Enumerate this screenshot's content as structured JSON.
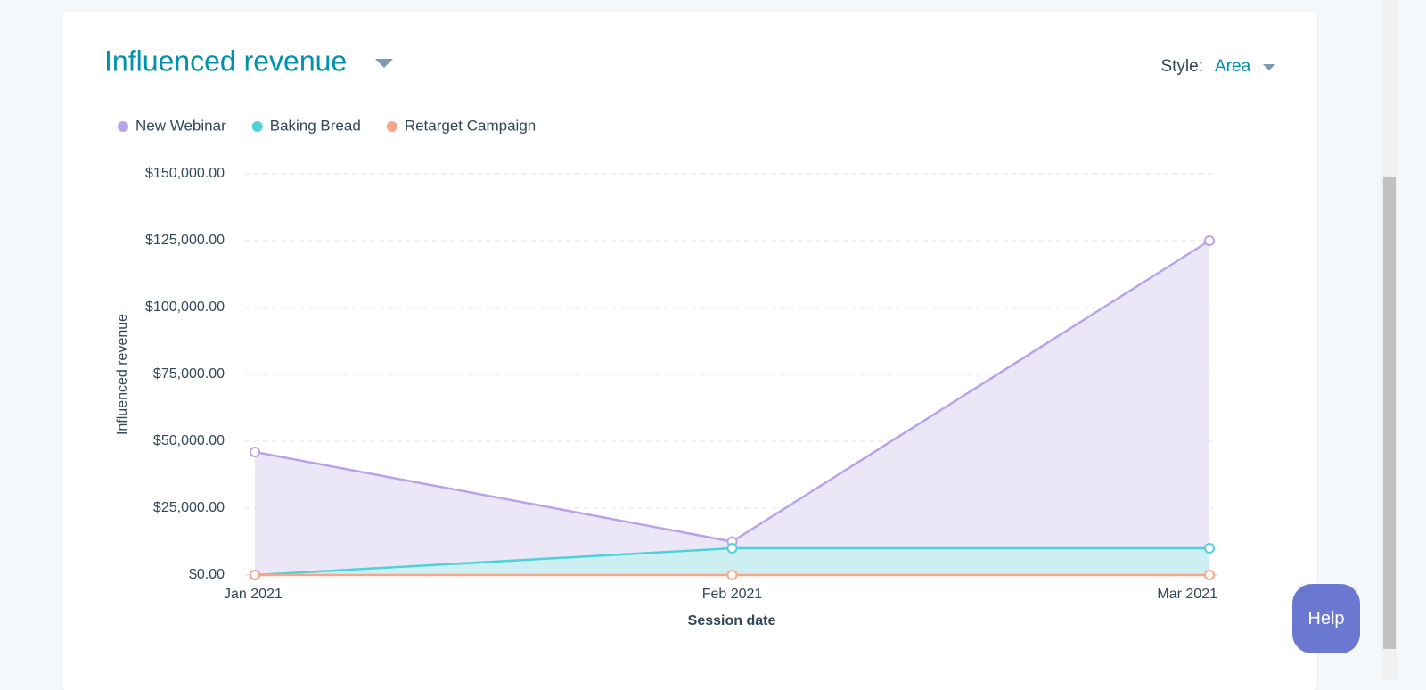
{
  "chart_data": {
    "type": "area",
    "title": "Influenced revenue",
    "y_label": "Influenced revenue",
    "x_label": "Session date",
    "categories": [
      "Jan 2021",
      "Feb 2021",
      "Mar 2021"
    ],
    "series": [
      {
        "name": "New Webinar",
        "color": "#b9a3e8",
        "fill": "#e9e3f6",
        "values": [
          46000,
          12500,
          125000
        ]
      },
      {
        "name": "Baking Bread",
        "color": "#4fd1d9",
        "fill": "#c8f0f0",
        "values": [
          0,
          10000,
          10000
        ]
      },
      {
        "name": "Retarget Campaign",
        "color": "#f8a58a",
        "fill": "#fde3da",
        "values": [
          0,
          0,
          0
        ]
      }
    ],
    "ylim": [
      0,
      150000
    ],
    "yticks": [
      {
        "value": 0,
        "label": "$0.00"
      },
      {
        "value": 25000,
        "label": "$25,000.00"
      },
      {
        "value": 50000,
        "label": "$50,000.00"
      },
      {
        "value": 75000,
        "label": "$75,000.00"
      },
      {
        "value": 100000,
        "label": "$100,000.00"
      },
      {
        "value": 125000,
        "label": "$125,000.00"
      },
      {
        "value": 150000,
        "label": "$150,000.00"
      }
    ],
    "grid": true
  },
  "controls": {
    "style_label": "Style:",
    "style_value": "Area",
    "help": "Help"
  }
}
